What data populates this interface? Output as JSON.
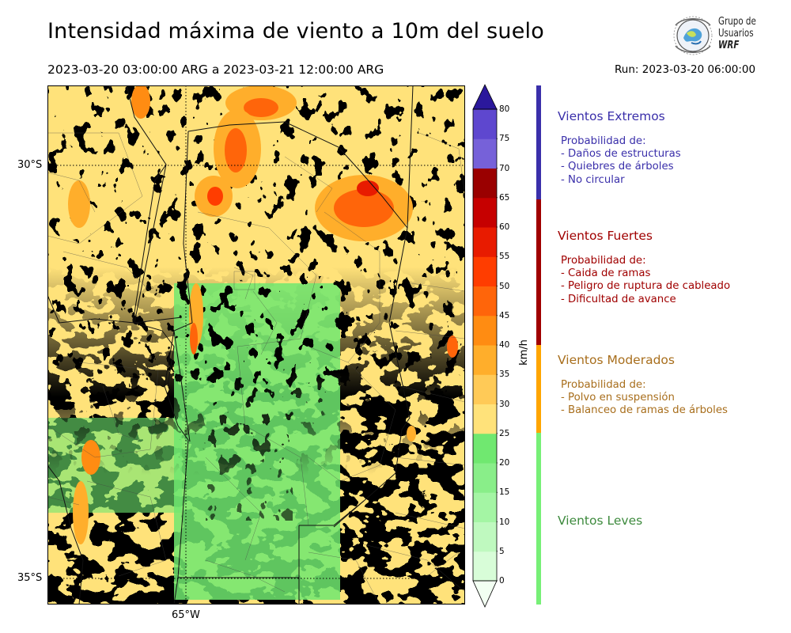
{
  "title": "Intensidad máxima de viento a 10m del suelo",
  "period": "2023-03-20 03:00:00 ARG  a  2023-03-21 12:00:00 ARG",
  "run": "Run: 2023-03-20 06:00:00",
  "logo": {
    "line1": "Grupo de",
    "line2": "Usuarios",
    "line3": "WRF"
  },
  "map": {
    "lat_labels": [
      "30°S",
      "35°S"
    ],
    "lon_labels": [
      "65°W"
    ],
    "extent": {
      "lon": [
        -66.2,
        -61.1
      ],
      "lat": [
        -35.3,
        -29.0
      ]
    },
    "gridlines": {
      "lats": [
        -30,
        -35
      ],
      "lons": [
        -65
      ]
    }
  },
  "colorbar": {
    "unit": "km/h",
    "ticks": [
      "0",
      "5",
      "10",
      "15",
      "20",
      "25",
      "30",
      "35",
      "40",
      "45",
      "50",
      "55",
      "60",
      "65",
      "70",
      "75",
      "80"
    ],
    "colors": [
      "#f2fff2",
      "#d8fdd8",
      "#bff9bf",
      "#a4f5a4",
      "#89ee89",
      "#70e870",
      "#ffe27a",
      "#ffca57",
      "#ffae2b",
      "#ff8c12",
      "#ff650a",
      "#ff3d00",
      "#e81b00",
      "#c60000",
      "#9a0000",
      "#7661d9",
      "#5e47cf",
      "#4632c1",
      "#2b189c"
    ],
    "extend": "both"
  },
  "categories": [
    {
      "title": "Vientos Extremos",
      "color": "#3a2faa",
      "desc": [
        "Probabilidad de:",
        "- Daños de estructuras",
        "- Quiebres de árboles",
        "- No circular"
      ]
    },
    {
      "title": "Vientos Fuertes",
      "color": "#a00000",
      "desc": [
        "Probabilidad de:",
        "- Caida de ramas",
        "- Peligro de ruptura de cableado",
        "- Dificultad de avance"
      ]
    },
    {
      "title": "Vientos Moderados",
      "color": "#a86e1c",
      "desc": [
        "Probabilidad de:",
        "- Polvo en suspensión",
        "- Balanceo de ramas de árboles"
      ]
    },
    {
      "title": "Vientos Leves",
      "color": "#3d8a3d",
      "desc": []
    }
  ],
  "category_bar_colors": [
    "#3a2faa",
    "#a00000",
    "#ffa500",
    "#77f077"
  ]
}
